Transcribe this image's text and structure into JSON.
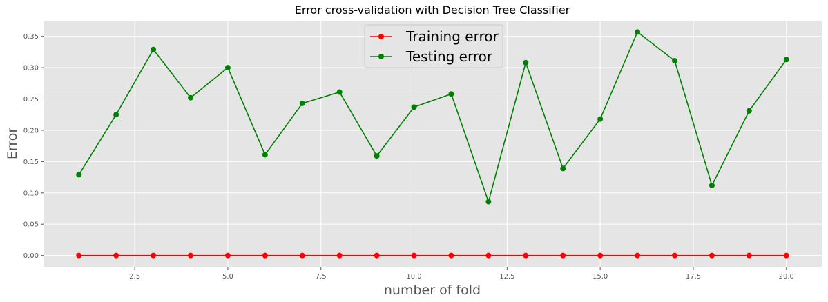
{
  "chart_data": {
    "type": "line",
    "title": "Error cross-validation with Decision Tree Classifier",
    "xlabel": "number of fold",
    "ylabel": "Error",
    "xlim": [
      0.05,
      20.95
    ],
    "ylim": [
      -0.018,
      0.375
    ],
    "xticks": [
      2.5,
      5.0,
      7.5,
      10.0,
      12.5,
      15.0,
      17.5,
      20.0
    ],
    "xtick_labels": [
      "2.5",
      "5.0",
      "7.5",
      "10.0",
      "12.5",
      "15.0",
      "17.5",
      "20.0"
    ],
    "yticks": [
      0.0,
      0.05,
      0.1,
      0.15,
      0.2,
      0.25,
      0.3,
      0.35
    ],
    "ytick_labels": [
      "0.00",
      "0.05",
      "0.10",
      "0.15",
      "0.20",
      "0.25",
      "0.30",
      "0.35"
    ],
    "grid": true,
    "legend_position": "top-center",
    "x": [
      1,
      2,
      3,
      4,
      5,
      6,
      7,
      8,
      9,
      10,
      11,
      12,
      13,
      14,
      15,
      16,
      17,
      18,
      19,
      20
    ],
    "series": [
      {
        "name": "Training error",
        "color": "#ff0000",
        "values": [
          0,
          0,
          0,
          0,
          0,
          0,
          0,
          0,
          0,
          0,
          0,
          0,
          0,
          0,
          0,
          0,
          0,
          0,
          0,
          0
        ]
      },
      {
        "name": "Testing error",
        "color": "#008000",
        "values": [
          0.129,
          0.225,
          0.329,
          0.252,
          0.3,
          0.161,
          0.243,
          0.261,
          0.159,
          0.237,
          0.258,
          0.086,
          0.308,
          0.139,
          0.218,
          0.357,
          0.311,
          0.112,
          0.231,
          0.313
        ]
      }
    ]
  }
}
